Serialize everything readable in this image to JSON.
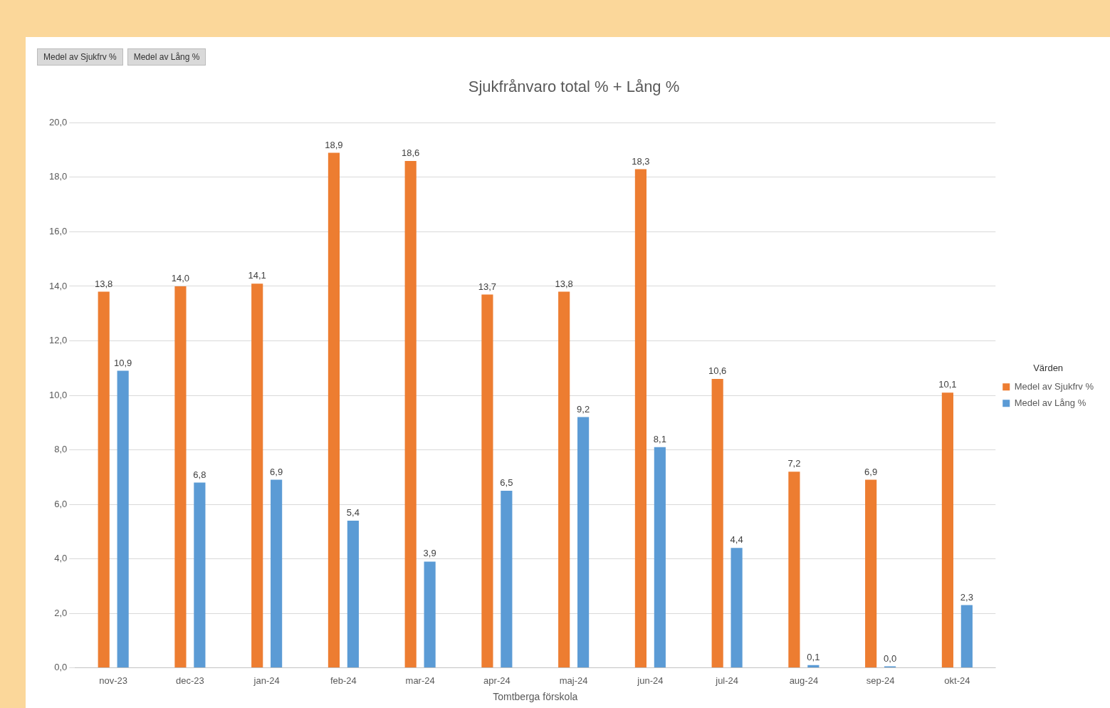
{
  "chart_data": {
    "type": "bar",
    "title": "Sjukfrånvaro total % + Lång %",
    "xlabel": "Tomtberga förskola",
    "legend_title": "Värden",
    "annotations": [
      "Medel av Sjukfrv %",
      "Medel av Lång %"
    ],
    "categories": [
      "nov-23",
      "dec-23",
      "jan-24",
      "feb-24",
      "mar-24",
      "apr-24",
      "maj-24",
      "jun-24",
      "jul-24",
      "aug-24",
      "sep-24",
      "okt-24"
    ],
    "series": [
      {
        "name": "Medel av Sjukfrv %",
        "color": "#ed7d31",
        "values": [
          13.8,
          14.0,
          14.1,
          18.9,
          18.6,
          13.7,
          13.8,
          18.3,
          10.6,
          7.2,
          6.9,
          10.1
        ],
        "value_labels": [
          "13,8",
          "14,0",
          "14,1",
          "18,9",
          "18,6",
          "13,7",
          "13,8",
          "18,3",
          "10,6",
          "7,2",
          "6,9",
          "10,1"
        ]
      },
      {
        "name": "Medel av Lång %",
        "color": "#5b9bd5",
        "values": [
          10.9,
          6.8,
          6.9,
          5.4,
          3.9,
          6.5,
          9.2,
          8.1,
          4.4,
          0.1,
          0.0,
          2.3
        ],
        "value_labels": [
          "10,9",
          "6,8",
          "6,9",
          "5,4",
          "3,9",
          "6,5",
          "9,2",
          "8,1",
          "4,4",
          "0,1",
          "0,0",
          "2,3"
        ]
      }
    ],
    "ylim": [
      0,
      20
    ],
    "yticks": [
      {
        "value": 0,
        "label": "0,0"
      },
      {
        "value": 2,
        "label": "2,0"
      },
      {
        "value": 4,
        "label": "4,0"
      },
      {
        "value": 6,
        "label": "6,0"
      },
      {
        "value": 8,
        "label": "8,0"
      },
      {
        "value": 10,
        "label": "10,0"
      },
      {
        "value": 12,
        "label": "12,0"
      },
      {
        "value": 14,
        "label": "14,0"
      },
      {
        "value": 16,
        "label": "16,0"
      },
      {
        "value": 18,
        "label": "18,0"
      },
      {
        "value": 20,
        "label": "20,0"
      }
    ],
    "grid": "y",
    "legend": "right"
  }
}
